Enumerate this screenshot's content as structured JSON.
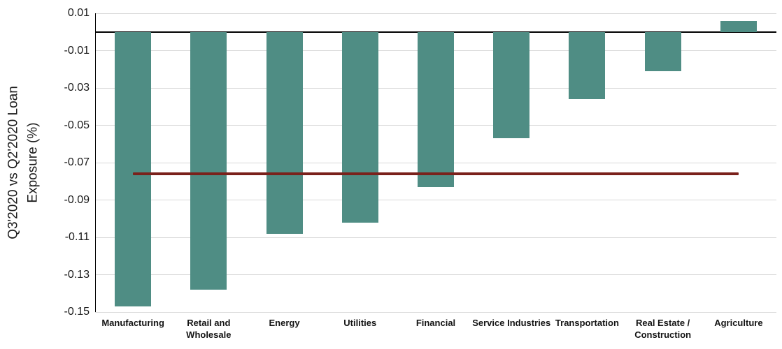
{
  "chart_data": {
    "type": "bar",
    "title": "",
    "ylabel_line1": "Q3'2020 vs Q2'2020 Loan",
    "ylabel_line2": "Exposure (%)",
    "categories": [
      "Manufacturing",
      "Retail and Wholesale",
      "Energy",
      "Utilities",
      "Financial",
      "Service Industries",
      "Transportation",
      "Real Estate / Construction",
      "Agriculture"
    ],
    "values": [
      -0.147,
      -0.138,
      -0.108,
      -0.102,
      -0.083,
      -0.057,
      -0.036,
      -0.021,
      0.006
    ],
    "ylim": [
      -0.15,
      0.01
    ],
    "y_tick_step": 0.02,
    "y_tick_labels": [
      "0.01",
      "-0.01",
      "-0.03",
      "-0.05",
      "-0.07",
      "-0.09",
      "-0.11",
      "-0.13",
      "-0.15"
    ],
    "y_tick_values": [
      0.01,
      -0.01,
      -0.03,
      -0.05,
      -0.07,
      -0.09,
      -0.11,
      -0.13,
      -0.15
    ],
    "reference_line": {
      "value": -0.076,
      "color": "#7A211B"
    },
    "bar_color": "#4F8D84",
    "gridline_color": "#D9D9D9",
    "axis_color": "#000000",
    "grid": "horizontal",
    "legend": "none"
  }
}
